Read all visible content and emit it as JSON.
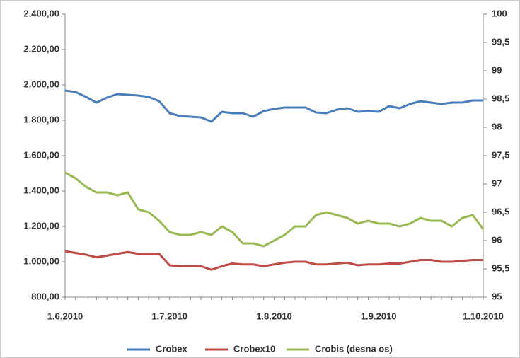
{
  "chart_data": {
    "type": "line",
    "categories": [
      "1.6.2010",
      null,
      null,
      null,
      null,
      null,
      null,
      null,
      null,
      null,
      "1.7.2010",
      null,
      null,
      null,
      null,
      null,
      null,
      null,
      null,
      null,
      "1.8.2010",
      null,
      null,
      null,
      null,
      null,
      null,
      null,
      null,
      null,
      "1.9.2010",
      null,
      null,
      null,
      null,
      null,
      null,
      null,
      null,
      null,
      "1.10.2010"
    ],
    "series": [
      {
        "name": "Crobex",
        "color": "#4a7ebb",
        "values": [
          1968,
          1960,
          1932,
          1900,
          1928,
          1948,
          1944,
          1940,
          1932,
          1908,
          1840,
          1824,
          1820,
          1816,
          1792,
          1848,
          1840,
          1840,
          1820,
          1852,
          1864,
          1872,
          1872,
          1872,
          1844,
          1840,
          1860,
          1868,
          1848,
          1852,
          1848,
          1880,
          1868,
          1892,
          1908,
          1900,
          1892,
          1900,
          1900,
          1912,
          1912
        ]
      },
      {
        "name": "Crobex10",
        "color": "#be4b48",
        "values": [
          1060,
          1050,
          1040,
          1025,
          1035,
          1045,
          1055,
          1045,
          1045,
          1045,
          980,
          975,
          975,
          975,
          955,
          975,
          990,
          985,
          985,
          975,
          985,
          995,
          1000,
          1000,
          985,
          985,
          990,
          995,
          980,
          985,
          985,
          990,
          990,
          1000,
          1010,
          1010,
          1000,
          1000,
          1005,
          1010,
          1010
        ]
      },
      {
        "name": "Crobis (desna os)",
        "color": "#98b954",
        "axis": "y2",
        "values": [
          97.2,
          97.1,
          96.95,
          96.85,
          96.85,
          96.8,
          96.85,
          96.55,
          96.5,
          96.35,
          96.15,
          96.1,
          96.1,
          96.15,
          96.1,
          96.25,
          96.15,
          95.95,
          95.95,
          95.9,
          96.0,
          96.1,
          96.25,
          96.25,
          96.45,
          96.5,
          96.45,
          96.4,
          96.3,
          96.35,
          96.3,
          96.3,
          96.25,
          96.3,
          96.4,
          96.35,
          96.35,
          96.25,
          96.4,
          96.45,
          96.2
        ]
      }
    ],
    "ylim": [
      800,
      2400
    ],
    "yticks": [
      {
        "value": 800,
        "label": "800,00"
      },
      {
        "value": 1000,
        "label": "1.000,00"
      },
      {
        "value": 1200,
        "label": "1.200,00"
      },
      {
        "value": 1400,
        "label": "1.400,00"
      },
      {
        "value": 1600,
        "label": "1.600,00"
      },
      {
        "value": 1800,
        "label": "1.800,00"
      },
      {
        "value": 2000,
        "label": "2.000,00"
      },
      {
        "value": 2200,
        "label": "2.200,00"
      },
      {
        "value": 2400,
        "label": "2.400,00"
      }
    ],
    "y2lim": [
      95,
      100
    ],
    "y2ticks": [
      95,
      {
        "value": 95.5,
        "label": "95,5"
      },
      96,
      {
        "value": 96.5,
        "label": "96,5"
      },
      97,
      {
        "value": 97.5,
        "label": "97,5"
      },
      98,
      {
        "value": 98.5,
        "label": "98,5"
      },
      99,
      {
        "value": 99.5,
        "label": "99,5"
      },
      100
    ],
    "legend": "bottom"
  }
}
